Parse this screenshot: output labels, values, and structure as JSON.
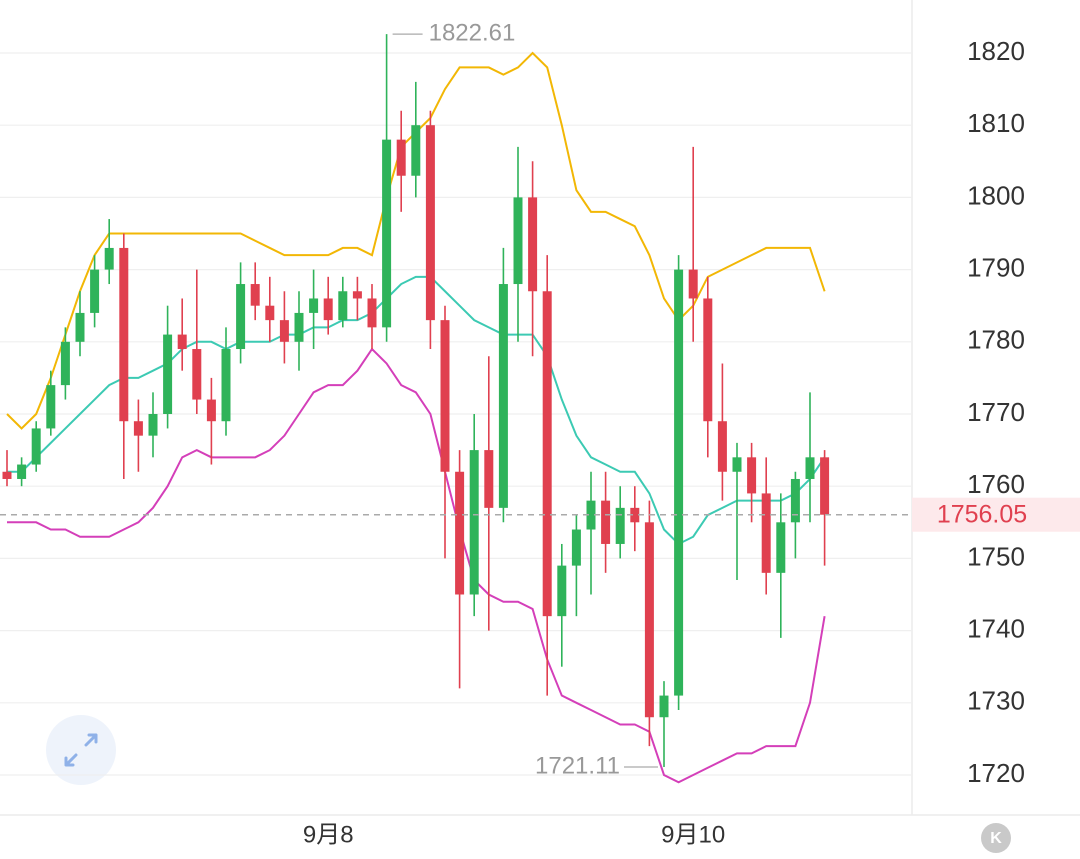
{
  "chart_data": {
    "type": "candlestick",
    "categories": [
      null,
      null,
      null,
      null,
      null,
      null,
      null,
      null,
      null,
      null,
      null,
      null,
      null,
      null,
      null,
      null,
      null,
      null,
      null,
      null,
      null,
      null,
      "9月8",
      null,
      null,
      null,
      null,
      null,
      null,
      null,
      null,
      null,
      null,
      null,
      null,
      null,
      null,
      null,
      null,
      null,
      null,
      null,
      null,
      null,
      null,
      null,
      null,
      "9月10",
      null,
      null,
      null,
      null,
      null,
      null,
      null,
      null,
      null
    ],
    "open": [
      1762,
      1761,
      1763,
      1768,
      1774,
      1780,
      1784,
      1790,
      1793,
      1769,
      1767,
      1770,
      1781,
      1779,
      1772,
      1769,
      1779,
      1788,
      1785,
      1783,
      1780,
      1784,
      1786,
      1783,
      1787,
      1786,
      1782,
      1808,
      1803,
      1810,
      1783,
      1762,
      1745,
      1765,
      1757,
      1788,
      1800,
      1787,
      1742,
      1749,
      1754,
      1758,
      1752,
      1757,
      1755,
      1728,
      1731,
      1790,
      1786,
      1769,
      1762,
      1764,
      1759,
      1748,
      1755,
      1761,
      1764
    ],
    "high": [
      1765,
      1764,
      1769,
      1776,
      1782,
      1787,
      1792,
      1797,
      1795,
      1772,
      1773,
      1785,
      1786,
      1790,
      1775,
      1782,
      1791,
      1791,
      1789,
      1787,
      1787,
      1790,
      1789,
      1789,
      1789,
      1788,
      1822.61,
      1812,
      1816,
      1812,
      1785,
      1765,
      1770,
      1778,
      1793,
      1807,
      1805,
      1792,
      1752,
      1756,
      1762,
      1762,
      1760,
      1760,
      1758,
      1733,
      1792,
      1807,
      1789,
      1777,
      1766,
      1766,
      1764,
      1759,
      1762,
      1773,
      1765
    ],
    "low": [
      1760,
      1760,
      1762,
      1767,
      1772,
      1778,
      1782,
      1788,
      1761,
      1762,
      1764,
      1768,
      1776,
      1770,
      1763,
      1767,
      1777,
      1783,
      1780,
      1777,
      1776,
      1779,
      1781,
      1782,
      1783,
      1779,
      1780,
      1798,
      1800,
      1779,
      1750,
      1732,
      1742,
      1740,
      1755,
      1780,
      1778,
      1731,
      1735,
      1742,
      1745,
      1748,
      1750,
      1751,
      1724,
      1721.11,
      1729,
      1780,
      1764,
      1758,
      1747,
      1755,
      1745,
      1739,
      1750,
      1755,
      1749
    ],
    "close": [
      1761,
      1763,
      1768,
      1774,
      1780,
      1784,
      1790,
      1793,
      1769,
      1767,
      1770,
      1781,
      1779,
      1772,
      1769,
      1779,
      1788,
      1785,
      1783,
      1780,
      1784,
      1786,
      1783,
      1787,
      1786,
      1782,
      1808,
      1803,
      1810,
      1783,
      1762,
      1745,
      1765,
      1757,
      1788,
      1800,
      1787,
      1742,
      1749,
      1754,
      1758,
      1752,
      1757,
      1755,
      1728,
      1731,
      1790,
      1786,
      1769,
      1762,
      1764,
      1759,
      1748,
      1755,
      1761,
      1764,
      1756.05
    ],
    "up_color": "#2fb35a",
    "down_color": "#e0404f",
    "bands": [
      {
        "color": "#f2b705",
        "values": [
          1770,
          1768,
          1770,
          1775,
          1781,
          1787,
          1792,
          1795,
          1795,
          1795,
          1795,
          1795,
          1795,
          1795,
          1795,
          1795,
          1795,
          1794,
          1793,
          1792,
          1792,
          1792,
          1792,
          1793,
          1793,
          1792,
          1800,
          1807,
          1809,
          1811,
          1815,
          1818,
          1818,
          1818,
          1817,
          1818,
          1820,
          1818,
          1810,
          1801,
          1798,
          1798,
          1797,
          1796,
          1792,
          1786,
          1783,
          1785,
          1789,
          1790,
          1791,
          1792,
          1793,
          1793,
          1793,
          1793,
          1787
        ]
      },
      {
        "color": "#3ccab3",
        "values": [
          1762,
          1762,
          1764,
          1766,
          1768,
          1770,
          1772,
          1774,
          1775,
          1775,
          1776,
          1777,
          1779,
          1780,
          1780,
          1779,
          1780,
          1780,
          1780,
          1781,
          1781,
          1782,
          1782,
          1783,
          1783,
          1784,
          1786,
          1788,
          1789,
          1789,
          1787,
          1785,
          1783,
          1782,
          1781,
          1781,
          1781,
          1778,
          1772,
          1767,
          1764,
          1763,
          1762,
          1762,
          1759,
          1754,
          1752,
          1753,
          1756,
          1757,
          1758,
          1758,
          1758,
          1758,
          1759,
          1761,
          1764
        ]
      },
      {
        "color": "#d43fb9",
        "values": [
          1755,
          1755,
          1755,
          1754,
          1754,
          1753,
          1753,
          1753,
          1754,
          1755,
          1757,
          1760,
          1764,
          1765,
          1764,
          1764,
          1764,
          1764,
          1765,
          1767,
          1770,
          1773,
          1774,
          1774,
          1776,
          1779,
          1777,
          1774,
          1773,
          1770,
          1762,
          1754,
          1747,
          1745,
          1744,
          1744,
          1743,
          1736,
          1731,
          1730,
          1729,
          1728,
          1727,
          1727,
          1726,
          1720,
          1719,
          1720,
          1721,
          1722,
          1723,
          1723,
          1724,
          1724,
          1724,
          1730,
          1742
        ]
      }
    ],
    "ylim": [
      1714.46,
      1827.34
    ],
    "yticks": [
      1720,
      1730,
      1740,
      1750,
      1760,
      1770,
      1780,
      1790,
      1800,
      1810,
      1820
    ],
    "grid": true
  },
  "controls": {
    "kline_button": "K"
  }
}
